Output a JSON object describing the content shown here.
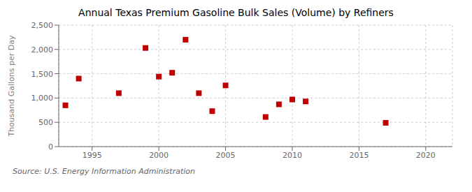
{
  "chart_data": {
    "type": "scatter",
    "title": "Annual Texas Premium Gasoline Bulk Sales (Volume) by Refiners",
    "ylabel": "Thousand Gallons per Day",
    "annotations": [
      "Source: U.S. Energy Information Administration"
    ],
    "x": [
      1993,
      1994,
      1997,
      1999,
      2000,
      2001,
      2002,
      2003,
      2004,
      2005,
      2008,
      2009,
      2010,
      2011,
      2017
    ],
    "values": [
      850,
      1400,
      1100,
      2030,
      1440,
      1520,
      2200,
      1100,
      730,
      1260,
      610,
      870,
      970,
      930,
      490
    ],
    "color": "#c00000",
    "marker": "square",
    "xlim": [
      1992.5,
      2022
    ],
    "ylim": [
      0,
      2500
    ],
    "xticks": [
      1995,
      2000,
      2005,
      2010,
      2015,
      2020
    ],
    "yticks": [
      0,
      500,
      {
        "value": 1000,
        "label": "1,000"
      },
      {
        "value": 1500,
        "label": "1,500"
      },
      {
        "value": 2000,
        "label": "2,000"
      },
      {
        "value": 2500,
        "label": "2,500"
      }
    ],
    "grid": true
  }
}
